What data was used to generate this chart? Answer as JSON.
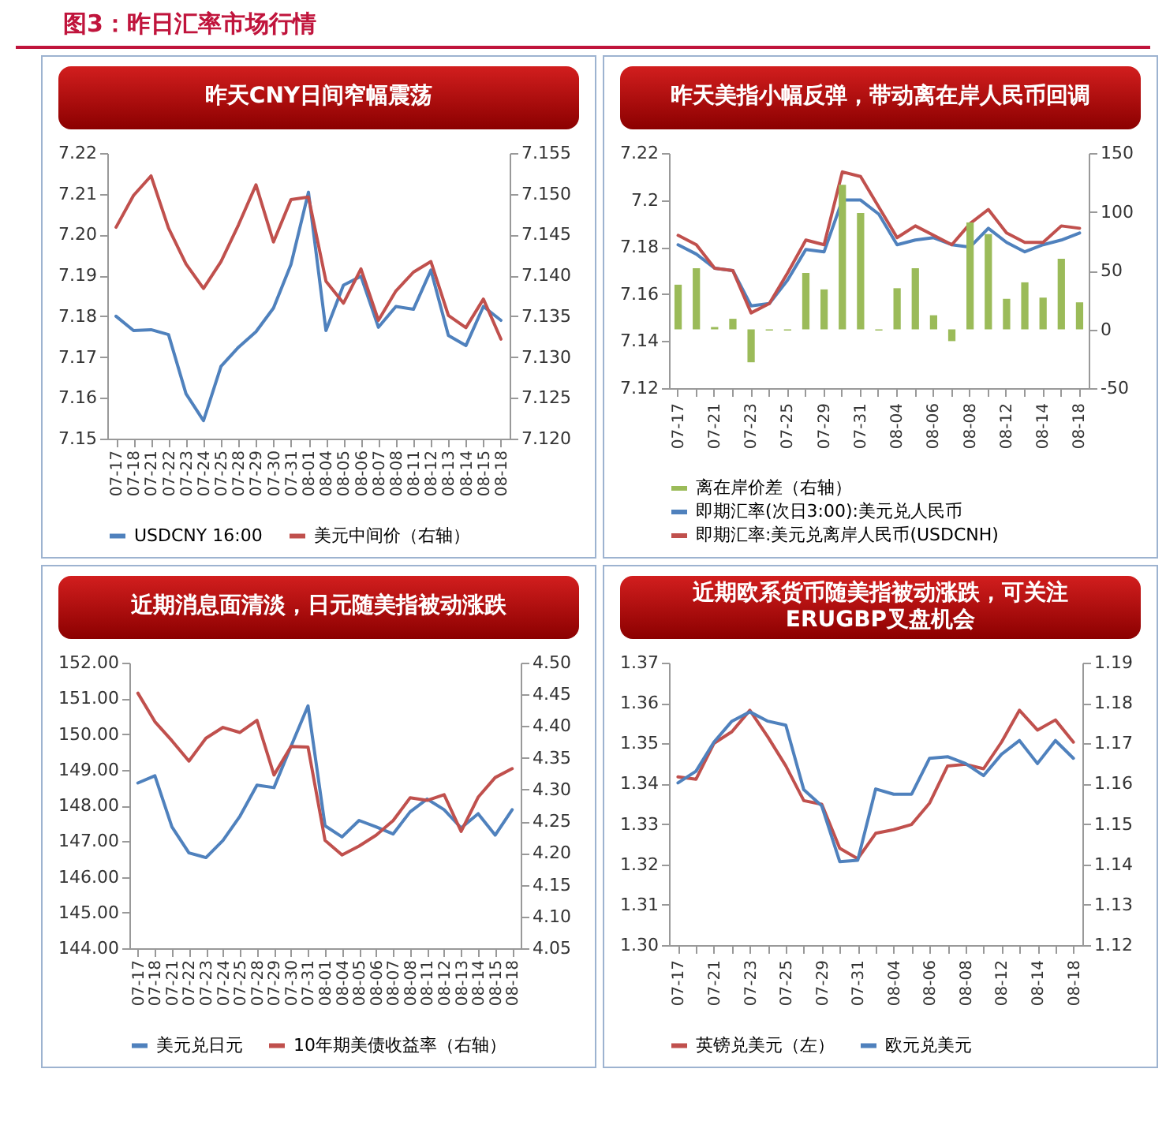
{
  "chart_data": [
    {
      "type": "line",
      "title": "昨天CNY日间窄幅震荡",
      "annotations": [
        "图3：昨日汇率市场行情"
      ],
      "legend": "bottom",
      "categories": [
        "07-17",
        "07-18",
        "07-21",
        "07-22",
        "07-23",
        "07-24",
        "07-25",
        "07-28",
        "07-29",
        "07-30",
        "07-31",
        "08-01",
        "08-04",
        "08-05",
        "08-06",
        "08-07",
        "08-08",
        "08-11",
        "08-12",
        "08-13",
        "08-14",
        "08-15",
        "08-18"
      ],
      "ylim": [
        7.15,
        7.22
      ],
      "yticks": [
        {
          "value": 7.15,
          "label": "7.15"
        },
        {
          "value": 7.16,
          "label": "7.16"
        },
        {
          "value": 7.17,
          "label": "7.17"
        },
        {
          "value": 7.18,
          "label": "7.18"
        },
        {
          "value": 7.19,
          "label": "7.19"
        },
        {
          "value": 7.2,
          "label": "7.20"
        },
        {
          "value": 7.21,
          "label": "7.21"
        },
        {
          "value": 7.22,
          "label": "7.22"
        }
      ],
      "y2lim": [
        7.12,
        7.155
      ],
      "y2ticks": [
        {
          "value": 7.12,
          "label": "7.120"
        },
        {
          "value": 7.125,
          "label": "7.125"
        },
        {
          "value": 7.13,
          "label": "7.130"
        },
        {
          "value": 7.135,
          "label": "7.135"
        },
        {
          "value": 7.14,
          "label": "7.140"
        },
        {
          "value": 7.145,
          "label": "7.145"
        },
        {
          "value": 7.15,
          "label": "7.150"
        },
        {
          "value": 7.155,
          "label": "7.155"
        }
      ],
      "series": [
        {
          "name": "USDCNY 16:00",
          "color": "#4f81bd",
          "values": [
            7.18,
            7.1765,
            7.1767,
            7.1755,
            7.161,
            7.1544,
            7.1677,
            7.1724,
            7.1762,
            7.182,
            7.1927,
            7.2104,
            7.1765,
            7.1876,
            7.1898,
            7.1773,
            7.1824,
            7.1817,
            7.1913,
            7.1753,
            7.1728,
            7.1824,
            7.179
          ]
        },
        {
          "name": "美元中间价（右轴）",
          "color": "#c0504d",
          "axis": "y2",
          "values": [
            7.1459,
            7.1498,
            7.1522,
            7.1458,
            7.1414,
            7.1384,
            7.1417,
            7.1462,
            7.1511,
            7.1441,
            7.1493,
            7.1496,
            7.1393,
            7.1366,
            7.1408,
            7.1345,
            7.1381,
            7.1404,
            7.1417,
            7.1351,
            7.1336,
            7.1371,
            7.1322
          ]
        }
      ]
    },
    {
      "type": "line",
      "title": "昨天美指小幅反弹，带动离在岸人民币回调",
      "legend": "bottom",
      "categories": [
        "07-17",
        null,
        "07-21",
        null,
        "07-23",
        null,
        "07-25",
        null,
        "07-29",
        null,
        "07-31",
        null,
        "08-04",
        null,
        "08-06",
        null,
        "08-08",
        null,
        "08-12",
        null,
        "08-14",
        null,
        "08-18"
      ],
      "ylim": [
        7.12,
        7.22
      ],
      "yticks": [
        7.12,
        7.14,
        7.16,
        7.18,
        7.2,
        7.22
      ],
      "y2lim": [
        -50,
        150
      ],
      "y2ticks": [
        -50,
        0,
        50,
        100,
        150
      ],
      "series": [
        {
          "name": "离在岸价差（右轴）",
          "type": "bar",
          "color": "#9bbb59",
          "axis": "y2",
          "values": [
            38,
            52,
            2,
            9,
            -28,
            -1,
            -1,
            48,
            34,
            123,
            99,
            -1,
            35,
            52,
            12,
            -10,
            91,
            81,
            26,
            40,
            27,
            60,
            23
          ]
        },
        {
          "name": "即期汇率(次日3:00):美元兑人民币",
          "color": "#4f81bd",
          "values": [
            7.181,
            7.177,
            7.171,
            7.17,
            7.155,
            7.156,
            7.166,
            7.179,
            7.178,
            7.2,
            7.2,
            7.194,
            7.181,
            7.183,
            7.184,
            7.181,
            7.18,
            7.188,
            7.182,
            7.178,
            7.181,
            7.183,
            7.186
          ]
        },
        {
          "name": "即期汇率:美元兑离岸人民币(USDCNH)",
          "color": "#c0504d",
          "values": [
            7.185,
            7.181,
            7.171,
            7.17,
            7.152,
            7.156,
            7.169,
            7.183,
            7.181,
            7.212,
            7.21,
            7.197,
            7.184,
            7.189,
            7.185,
            7.181,
            7.19,
            7.196,
            7.186,
            7.182,
            7.182,
            7.189,
            7.188
          ]
        }
      ]
    },
    {
      "type": "line",
      "title": "近期消息面清淡，日元随美指被动涨跌",
      "legend": "bottom",
      "categories": [
        "07-17",
        "07-18",
        "07-21",
        "07-22",
        "07-23",
        "07-24",
        "07-25",
        "07-28",
        "07-29",
        "07-30",
        "07-31",
        "08-01",
        "08-04",
        "08-05",
        "08-06",
        "08-07",
        "08-08",
        "08-11",
        "08-12",
        "08-13",
        "08-14",
        "08-15",
        "08-18"
      ],
      "ylim": [
        144,
        152
      ],
      "yticks": [
        {
          "value": 144,
          "label": "144.00"
        },
        {
          "value": 145,
          "label": "145.00"
        },
        {
          "value": 146,
          "label": "146.00"
        },
        {
          "value": 147,
          "label": "147.00"
        },
        {
          "value": 148,
          "label": "148.00"
        },
        {
          "value": 149,
          "label": "149.00"
        },
        {
          "value": 150,
          "label": "150.00"
        },
        {
          "value": 151,
          "label": "151.00"
        },
        {
          "value": 152,
          "label": "152.00"
        }
      ],
      "y2lim": [
        4.05,
        4.5
      ],
      "y2ticks": [
        {
          "value": 4.05,
          "label": "4.05"
        },
        {
          "value": 4.1,
          "label": "4.10"
        },
        {
          "value": 4.15,
          "label": "4.15"
        },
        {
          "value": 4.2,
          "label": "4.20"
        },
        {
          "value": 4.25,
          "label": "4.25"
        },
        {
          "value": 4.3,
          "label": "4.30"
        },
        {
          "value": 4.35,
          "label": "4.35"
        },
        {
          "value": 4.4,
          "label": "4.40"
        },
        {
          "value": 4.45,
          "label": "4.45"
        },
        {
          "value": 4.5,
          "label": "4.50"
        }
      ],
      "series": [
        {
          "name": "美元兑日元",
          "color": "#4f81bd",
          "values": [
            148.63,
            148.83,
            147.4,
            146.67,
            146.54,
            147.02,
            147.7,
            148.57,
            148.5,
            149.66,
            150.79,
            147.43,
            147.12,
            147.58,
            147.4,
            147.2,
            147.82,
            148.18,
            147.88,
            147.37,
            147.77,
            147.17,
            147.88
          ]
        },
        {
          "name": "10年期美债收益率（右轴）",
          "color": "#c0504d",
          "axis": "y2",
          "values": [
            4.452,
            4.407,
            4.377,
            4.345,
            4.381,
            4.398,
            4.39,
            4.409,
            4.323,
            4.368,
            4.367,
            4.22,
            4.197,
            4.211,
            4.228,
            4.251,
            4.287,
            4.283,
            4.292,
            4.234,
            4.288,
            4.319,
            4.333
          ]
        }
      ]
    },
    {
      "type": "line",
      "title": "近期欧系货币随美指被动涨跌，可关注ERUGBP叉盘机会",
      "legend": "bottom",
      "categories": [
        "07-17",
        null,
        "07-21",
        null,
        "07-23",
        null,
        "07-25",
        null,
        "07-29",
        null,
        "07-31",
        null,
        "08-04",
        null,
        "08-06",
        null,
        "08-08",
        null,
        "08-12",
        null,
        "08-14",
        null,
        "08-18"
      ],
      "ylim": [
        1.3,
        1.37
      ],
      "yticks": [
        {
          "value": 1.3,
          "label": "1.30"
        },
        {
          "value": 1.31,
          "label": "1.31"
        },
        {
          "value": 1.32,
          "label": "1.32"
        },
        {
          "value": 1.33,
          "label": "1.33"
        },
        {
          "value": 1.34,
          "label": "1.34"
        },
        {
          "value": 1.35,
          "label": "1.35"
        },
        {
          "value": 1.36,
          "label": "1.36"
        },
        {
          "value": 1.37,
          "label": "1.37"
        }
      ],
      "y2lim": [
        1.12,
        1.19
      ],
      "y2ticks": [
        {
          "value": 1.12,
          "label": "1.12"
        },
        {
          "value": 1.13,
          "label": "1.13"
        },
        {
          "value": 1.14,
          "label": "1.14"
        },
        {
          "value": 1.15,
          "label": "1.15"
        },
        {
          "value": 1.16,
          "label": "1.16"
        },
        {
          "value": 1.17,
          "label": "1.17"
        },
        {
          "value": 1.18,
          "label": "1.18"
        },
        {
          "value": 1.19,
          "label": "1.19"
        }
      ],
      "series": [
        {
          "name": "英镑兑美元（左）",
          "color": "#c0504d",
          "values": [
            1.3417,
            1.3411,
            1.35,
            1.3529,
            1.3582,
            1.3516,
            1.3444,
            1.3358,
            1.3349,
            1.324,
            1.3214,
            1.3277,
            1.3286,
            1.3299,
            1.3352,
            1.3444,
            1.3448,
            1.3437,
            1.3503,
            1.3582,
            1.3533,
            1.3558,
            1.3503
          ]
        },
        {
          "name": "欧元兑美元",
          "color": "#4f81bd",
          "axis": "y2",
          "values": [
            1.1602,
            1.1631,
            1.1703,
            1.1755,
            1.1778,
            1.1755,
            1.1745,
            1.1585,
            1.1545,
            1.1407,
            1.141,
            1.1587,
            1.1574,
            1.1574,
            1.1663,
            1.1667,
            1.165,
            1.162,
            1.1673,
            1.1707,
            1.165,
            1.1707,
            1.1663
          ]
        }
      ]
    }
  ]
}
